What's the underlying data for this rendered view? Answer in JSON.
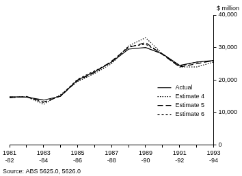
{
  "chart_data": {
    "type": "line",
    "y_label": "$ million",
    "note": "Source: ABS 5625.0, 5626.0",
    "categories": [
      "1981-82",
      null,
      "1983-84",
      null,
      "1985-86",
      null,
      "1987-88",
      null,
      "1989-90",
      null,
      "1991-92",
      null,
      "1993-94"
    ],
    "series": [
      {
        "name": "Actual",
        "color": "#000000",
        "line_style": "solid",
        "values": [
          14800,
          14700,
          13800,
          15000,
          20000,
          22500,
          25500,
          29500,
          30000,
          28000,
          24500,
          25500,
          26000
        ]
      },
      {
        "name": "Estimate 4",
        "color": "#000000",
        "line_style": "dotted",
        "values": [
          14700,
          14800,
          12500,
          15500,
          19500,
          22000,
          25000,
          30500,
          33000,
          28000,
          24000,
          24000,
          25500
        ]
      },
      {
        "name": "Estimate 5",
        "color": "#000000",
        "line_style": "long_dash",
        "values": [
          14500,
          14900,
          13200,
          15000,
          19800,
          22300,
          25800,
          30000,
          31500,
          27800,
          24000,
          25000,
          26000
        ]
      },
      {
        "name": "Estimate 6",
        "color": "#000000",
        "line_style": "dashed",
        "values": [
          14600,
          14800,
          13000,
          15200,
          20200,
          22800,
          25600,
          30300,
          31000,
          28000,
          24200,
          25500,
          25800
        ]
      }
    ],
    "ylim": [
      0,
      40000
    ],
    "yticks": [
      0,
      {
        "value": 10000,
        "label": "10,000"
      },
      {
        "value": 20000,
        "label": "20,000"
      },
      {
        "value": 30000,
        "label": "30,000"
      },
      {
        "value": 40000,
        "label": "40,000"
      }
    ],
    "grid": false,
    "legend": "right"
  }
}
